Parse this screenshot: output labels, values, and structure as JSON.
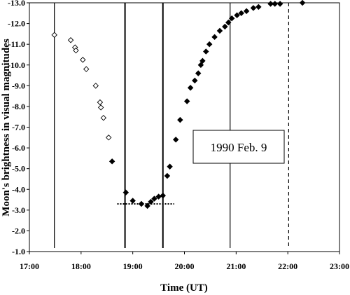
{
  "chart_data": {
    "type": "scatter",
    "xlabel": "Time (UT)",
    "ylabel": "Moon's brightness in visual magnitudes",
    "x_ticks": [
      "17:00",
      "18:00",
      "19:00",
      "20:00",
      "21:00",
      "22:00",
      "23:00"
    ],
    "xlim": [
      17.0,
      23.0
    ],
    "y_ticks": [
      "-1.0",
      "-2.0",
      "-3.0",
      "-4.0",
      "-5.0",
      "-6.0",
      "-7.0",
      "-8.0",
      "-9.0",
      "-10.0",
      "-11.0",
      "-12.0",
      "-13.0"
    ],
    "ylim": [
      -1.0,
      -13.0
    ],
    "y_inverted": true,
    "grid": false,
    "annotation": "1990 Feb. 9",
    "vertical_lines": [
      {
        "x": "17:29",
        "style": "solid-thin"
      },
      {
        "x": "18:51",
        "style": "solid-thick"
      },
      {
        "x": "19:35",
        "style": "solid-thick"
      },
      {
        "x": "20:53",
        "style": "solid-thin"
      },
      {
        "x": "22:01",
        "style": "dashed"
      }
    ],
    "horizontal_dotted_line": {
      "y": -3.3,
      "x_from": "18:42",
      "x_to": "19:48"
    },
    "series": [
      {
        "marker": "open-diamond",
        "x": [
          "17:29",
          "17:48",
          "17:53",
          "17:54",
          "18:02",
          "18:06",
          "18:17",
          "18:22",
          "18:23",
          "18:26",
          "18:32"
        ],
        "y": [
          -11.45,
          -11.2,
          -10.85,
          -10.7,
          -10.25,
          -9.8,
          -9.0,
          -8.2,
          -7.95,
          -7.45,
          -6.5
        ]
      },
      {
        "marker": "filled-diamond",
        "x": [
          "18:36",
          "18:52",
          "19:00",
          "19:10",
          "19:17",
          "19:21",
          "19:25",
          "19:30",
          "19:35",
          "19:40",
          "19:43",
          "19:50",
          "19:55",
          "20:03",
          "20:07",
          "20:12",
          "20:16",
          "20:19",
          "20:21",
          "20:25",
          "20:29",
          "20:35",
          "20:41",
          "20:47",
          "20:51",
          "20:55",
          "21:01",
          "21:06",
          "21:12",
          "21:20",
          "21:26",
          "21:40",
          "21:45",
          "21:51",
          "22:17"
        ],
        "y": [
          -5.35,
          -3.85,
          -3.45,
          -3.3,
          -3.2,
          -3.4,
          -3.55,
          -3.65,
          -3.7,
          -4.65,
          -5.1,
          -6.4,
          -7.35,
          -8.25,
          -8.9,
          -9.25,
          -9.6,
          -10.0,
          -10.2,
          -10.65,
          -11.0,
          -11.35,
          -11.65,
          -11.85,
          -12.05,
          -12.25,
          -12.4,
          -12.5,
          -12.6,
          -12.75,
          -12.8,
          -12.95,
          -12.95,
          -12.95,
          -13.0
        ]
      }
    ]
  }
}
